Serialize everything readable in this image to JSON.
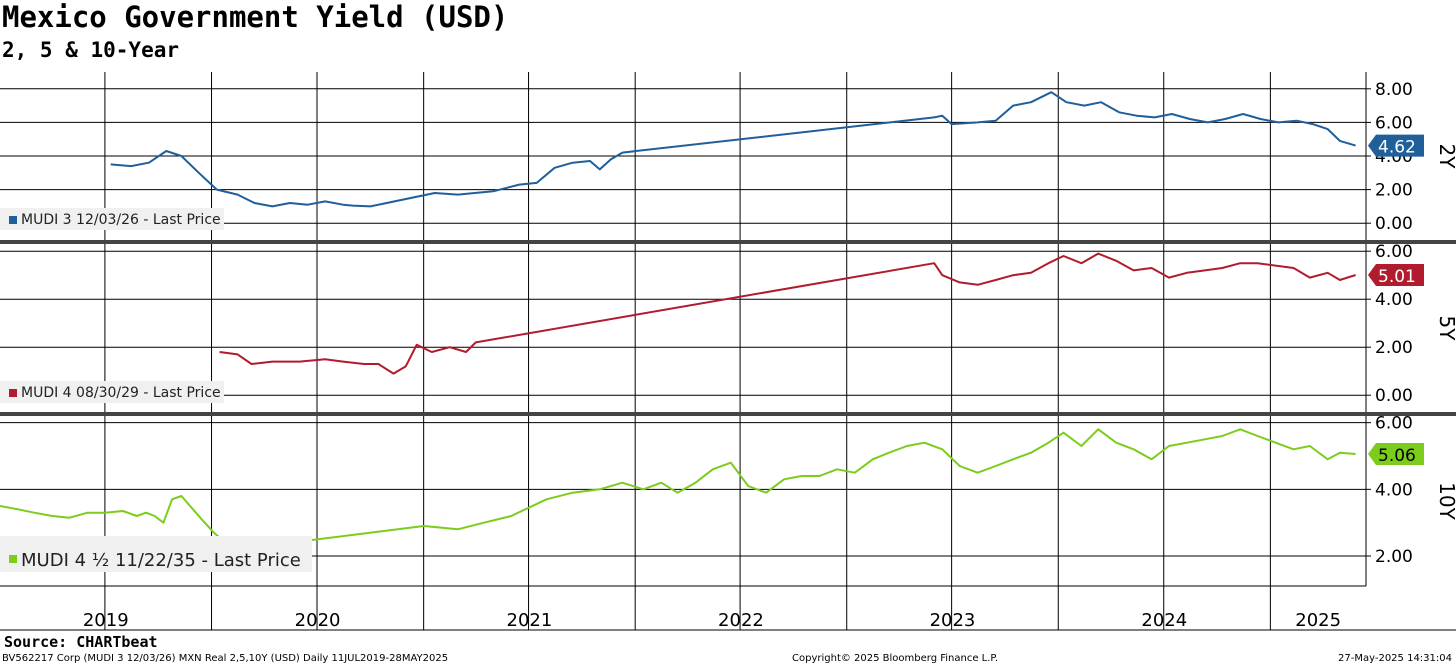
{
  "header": {
    "title": "Mexico Government Yield (USD)",
    "subtitle": "2, 5 & 10-Year"
  },
  "footer": {
    "source": "Source: CHARTbeat",
    "description": "BV562217 Corp (MUDI 3 12/03/26) MXN Real 2,5,10Y (USD)  Daily 11JUL2019-28MAY2025",
    "copyright": "Copyright© 2025 Bloomberg Finance L.P.",
    "timestamp": "27-May-2025 14:31:04"
  },
  "colors": {
    "series_2y": "#1f5f9a",
    "series_5y": "#b01c2e",
    "series_10y": "#7ccc1c"
  },
  "chart_data": [
    {
      "type": "line",
      "panel_label": "2Y",
      "xlim": [
        "2019-01-01",
        "2025-06-15"
      ],
      "ylim": [
        -1,
        9
      ],
      "y_ticks": [
        "0.00",
        "2.00",
        "4.00",
        "6.00",
        "8.00"
      ],
      "last_value": "4.62",
      "legend": "top-left",
      "grid": true,
      "series": [
        {
          "name": "MUDI 3 12/03/26 - Last Price",
          "points": [
            [
              "2019-07-11",
              3.5
            ],
            [
              "2019-08-15",
              3.4
            ],
            [
              "2019-09-15",
              3.6
            ],
            [
              "2019-10-15",
              4.3
            ],
            [
              "2019-11-10",
              4.0
            ],
            [
              "2019-12-10",
              3.0
            ],
            [
              "2020-01-10",
              2.0
            ],
            [
              "2020-02-15",
              1.7
            ],
            [
              "2020-03-15",
              1.2
            ],
            [
              "2020-04-15",
              1.0
            ],
            [
              "2020-05-15",
              1.2
            ],
            [
              "2020-06-15",
              1.1
            ],
            [
              "2020-07-15",
              1.3
            ],
            [
              "2020-08-15",
              1.1
            ],
            [
              "2020-09-01",
              1.05
            ],
            [
              "2020-10-01",
              1.0
            ],
            [
              "2021-01-20",
              1.8
            ],
            [
              "2021-03-01",
              1.7
            ],
            [
              "2021-05-01",
              1.9
            ],
            [
              "2021-06-15",
              2.3
            ],
            [
              "2021-07-15",
              2.4
            ],
            [
              "2021-08-15",
              3.3
            ],
            [
              "2021-09-15",
              3.6
            ],
            [
              "2021-10-15",
              3.7
            ],
            [
              "2021-11-01",
              3.2
            ],
            [
              "2021-11-20",
              3.8
            ],
            [
              "2021-12-10",
              4.2
            ],
            [
              "2023-06-01",
              6.3
            ],
            [
              "2023-06-15",
              6.4
            ],
            [
              "2023-07-01",
              5.9
            ],
            [
              "2023-08-15",
              6.0
            ],
            [
              "2023-09-15",
              6.1
            ],
            [
              "2023-10-15",
              7.0
            ],
            [
              "2023-11-15",
              7.2
            ],
            [
              "2023-12-20",
              7.8
            ],
            [
              "2024-01-15",
              7.2
            ],
            [
              "2024-02-15",
              7.0
            ],
            [
              "2024-03-15",
              7.2
            ],
            [
              "2024-04-15",
              6.6
            ],
            [
              "2024-05-15",
              6.4
            ],
            [
              "2024-06-15",
              6.3
            ],
            [
              "2024-07-15",
              6.5
            ],
            [
              "2024-08-15",
              6.2
            ],
            [
              "2024-09-15",
              6.0
            ],
            [
              "2024-10-15",
              6.2
            ],
            [
              "2024-11-15",
              6.5
            ],
            [
              "2024-12-15",
              6.2
            ],
            [
              "2025-01-15",
              6.0
            ],
            [
              "2025-02-15",
              6.1
            ],
            [
              "2025-03-15",
              5.9
            ],
            [
              "2025-04-10",
              5.6
            ],
            [
              "2025-05-01",
              4.9
            ],
            [
              "2025-05-28",
              4.62
            ]
          ]
        }
      ]
    },
    {
      "type": "line",
      "panel_label": "5Y",
      "xlim": [
        "2019-01-01",
        "2025-06-15"
      ],
      "ylim": [
        -0.7,
        6.3
      ],
      "y_ticks": [
        "0.00",
        "2.00",
        "4.00",
        "6.00"
      ],
      "last_value": "5.01",
      "legend": "top-left",
      "grid": true,
      "series": [
        {
          "name": "MUDI 4 08/30/29 - Last Price",
          "points": [
            [
              "2020-01-15",
              1.8
            ],
            [
              "2020-02-15",
              1.7
            ],
            [
              "2020-03-10",
              1.3
            ],
            [
              "2020-04-15",
              1.4
            ],
            [
              "2020-06-01",
              1.4
            ],
            [
              "2020-07-15",
              1.5
            ],
            [
              "2020-08-15",
              1.4
            ],
            [
              "2020-09-20",
              1.3
            ],
            [
              "2020-10-15",
              1.3
            ],
            [
              "2020-11-10",
              0.9
            ],
            [
              "2020-12-01",
              1.2
            ],
            [
              "2020-12-20",
              2.1
            ],
            [
              "2021-01-15",
              1.8
            ],
            [
              "2021-02-15",
              2.0
            ],
            [
              "2021-03-15",
              1.8
            ],
            [
              "2021-04-01",
              2.2
            ],
            [
              "2023-06-01",
              5.5
            ],
            [
              "2023-06-15",
              5.0
            ],
            [
              "2023-07-15",
              4.7
            ],
            [
              "2023-08-15",
              4.6
            ],
            [
              "2023-09-15",
              4.8
            ],
            [
              "2023-10-15",
              5.0
            ],
            [
              "2023-11-15",
              5.1
            ],
            [
              "2023-12-15",
              5.5
            ],
            [
              "2024-01-10",
              5.8
            ],
            [
              "2024-02-10",
              5.5
            ],
            [
              "2024-03-10",
              5.9
            ],
            [
              "2024-04-10",
              5.6
            ],
            [
              "2024-05-10",
              5.2
            ],
            [
              "2024-06-10",
              5.3
            ],
            [
              "2024-07-10",
              4.9
            ],
            [
              "2024-08-10",
              5.1
            ],
            [
              "2024-09-10",
              5.2
            ],
            [
              "2024-10-10",
              5.3
            ],
            [
              "2024-11-10",
              5.5
            ],
            [
              "2024-12-10",
              5.5
            ],
            [
              "2025-01-10",
              5.4
            ],
            [
              "2025-02-10",
              5.3
            ],
            [
              "2025-03-10",
              4.9
            ],
            [
              "2025-04-10",
              5.1
            ],
            [
              "2025-05-01",
              4.8
            ],
            [
              "2025-05-28",
              5.01
            ]
          ]
        }
      ]
    },
    {
      "type": "line",
      "panel_label": "10Y",
      "xlim": [
        "2019-01-01",
        "2025-06-15"
      ],
      "ylim": [
        1.1,
        6.2
      ],
      "y_ticks": [
        "2.00",
        "4.00",
        "6.00"
      ],
      "last_value": "5.06",
      "legend": "bottom-left",
      "grid": true,
      "series": [
        {
          "name": "MUDI 4 ½ 11/22/35 - Last Price",
          "points": [
            [
              "2019-01-01",
              3.5
            ],
            [
              "2019-02-01",
              3.4
            ],
            [
              "2019-03-01",
              3.3
            ],
            [
              "2019-04-01",
              3.2
            ],
            [
              "2019-05-01",
              3.15
            ],
            [
              "2019-06-01",
              3.3
            ],
            [
              "2019-07-01",
              3.3
            ],
            [
              "2019-08-01",
              3.35
            ],
            [
              "2019-08-25",
              3.2
            ],
            [
              "2019-09-10",
              3.3
            ],
            [
              "2019-09-25",
              3.2
            ],
            [
              "2019-10-10",
              3.0
            ],
            [
              "2019-10-25",
              3.7
            ],
            [
              "2019-11-10",
              3.8
            ],
            [
              "2019-11-25",
              3.5
            ],
            [
              "2019-12-15",
              3.1
            ],
            [
              "2020-01-05",
              2.7
            ],
            [
              "2020-02-01",
              2.3
            ],
            [
              "2020-02-15",
              2.2
            ],
            [
              "2021-01-01",
              2.9
            ],
            [
              "2021-03-01",
              2.8
            ],
            [
              "2021-04-15",
              3.0
            ],
            [
              "2021-06-01",
              3.2
            ],
            [
              "2021-08-01",
              3.7
            ],
            [
              "2021-09-15",
              3.9
            ],
            [
              "2021-11-01",
              4.0
            ],
            [
              "2021-12-10",
              4.2
            ],
            [
              "2022-01-15",
              4.0
            ],
            [
              "2022-02-15",
              4.2
            ],
            [
              "2022-03-15",
              3.9
            ],
            [
              "2022-04-15",
              4.2
            ],
            [
              "2022-05-15",
              4.6
            ],
            [
              "2022-06-15",
              4.8
            ],
            [
              "2022-07-15",
              4.1
            ],
            [
              "2022-08-15",
              3.9
            ],
            [
              "2022-09-15",
              4.3
            ],
            [
              "2022-10-15",
              4.4
            ],
            [
              "2022-11-15",
              4.4
            ],
            [
              "2022-12-15",
              4.6
            ],
            [
              "2023-01-15",
              4.5
            ],
            [
              "2023-02-15",
              4.9
            ],
            [
              "2023-03-15",
              5.1
            ],
            [
              "2023-04-15",
              5.3
            ],
            [
              "2023-05-15",
              5.4
            ],
            [
              "2023-06-15",
              5.2
            ],
            [
              "2023-07-15",
              4.7
            ],
            [
              "2023-08-15",
              4.5
            ],
            [
              "2023-09-15",
              4.7
            ],
            [
              "2023-10-15",
              4.9
            ],
            [
              "2023-11-15",
              5.1
            ],
            [
              "2023-12-15",
              5.4
            ],
            [
              "2024-01-10",
              5.7
            ],
            [
              "2024-02-10",
              5.3
            ],
            [
              "2024-03-10",
              5.8
            ],
            [
              "2024-04-10",
              5.4
            ],
            [
              "2024-05-10",
              5.2
            ],
            [
              "2024-06-10",
              4.9
            ],
            [
              "2024-07-10",
              5.3
            ],
            [
              "2024-08-10",
              5.4
            ],
            [
              "2024-09-10",
              5.5
            ],
            [
              "2024-10-10",
              5.6
            ],
            [
              "2024-11-10",
              5.8
            ],
            [
              "2024-12-10",
              5.6
            ],
            [
              "2025-01-10",
              5.4
            ],
            [
              "2025-02-10",
              5.2
            ],
            [
              "2025-03-10",
              5.3
            ],
            [
              "2025-04-10",
              4.9
            ],
            [
              "2025-05-01",
              5.1
            ],
            [
              "2025-05-28",
              5.06
            ]
          ]
        }
      ]
    }
  ],
  "x_axis": {
    "tick_labels": [
      {
        "label": "2019",
        "date": "2019-07-01"
      },
      {
        "label": "2020",
        "date": "2020-01-01"
      },
      {
        "label": "2021",
        "date": "2021-01-01"
      },
      {
        "label": "2022",
        "date": "2022-01-01"
      },
      {
        "label": "2023",
        "date": "2023-01-01"
      },
      {
        "label": "2024",
        "date": "2024-01-01"
      },
      {
        "label": "2025",
        "date": "2025-01-01"
      }
    ],
    "gridline_dates": [
      "2019-07-01",
      "2020-07-01",
      "2021-07-01",
      "2022-07-01",
      "2023-07-01",
      "2024-07-01"
    ]
  }
}
